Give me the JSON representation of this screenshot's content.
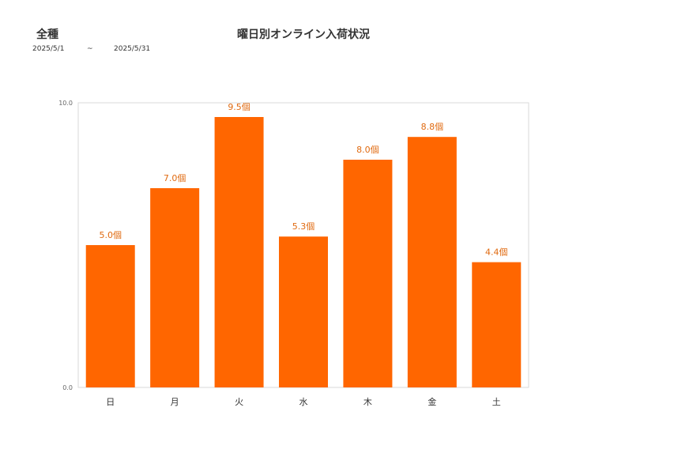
{
  "header": {
    "category": "全種",
    "date_start": "2025/5/1",
    "date_sep": "~",
    "date_end": "2025/5/31"
  },
  "chart_data": {
    "type": "bar",
    "title": "曜日別オンライン入荷状況",
    "categories": [
      "日",
      "月",
      "火",
      "水",
      "木",
      "金",
      "土"
    ],
    "values": [
      5.0,
      7.0,
      9.5,
      5.3,
      8.0,
      8.8,
      4.4
    ],
    "value_labels": [
      "5.0個",
      "7.0個",
      "9.5個",
      "5.3個",
      "8.0個",
      "8.8個",
      "4.4個"
    ],
    "yticks": [
      "0.0",
      "10.0"
    ],
    "ylim": [
      0,
      10
    ],
    "bar_color": "#ff6600",
    "label_color": "#e06a10",
    "grid": false
  }
}
